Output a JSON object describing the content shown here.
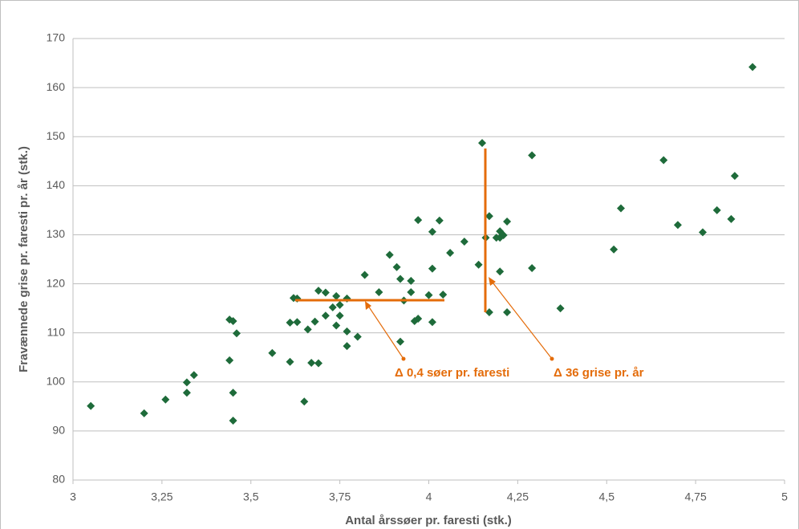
{
  "chart_data": {
    "type": "scatter",
    "x_label": "Antal årssøer pr. faresti (stk.)",
    "y_label": "Fravænnede grise pr. faresti pr. år (stk.)",
    "xlim": [
      3,
      5
    ],
    "xticks": [
      3,
      {
        "value": 3.25,
        "label": "3,25"
      },
      {
        "value": 3.5,
        "label": "3,5"
      },
      {
        "value": 3.75,
        "label": "3,75"
      },
      4,
      {
        "value": 4.25,
        "label": "4,25"
      },
      {
        "value": 4.5,
        "label": "4,5"
      },
      {
        "value": 4.75,
        "label": "4,75"
      },
      5
    ],
    "ylim": [
      80,
      170
    ],
    "yticks": [
      80,
      90,
      100,
      110,
      120,
      130,
      140,
      150,
      160,
      170
    ],
    "grid": true,
    "annotations": [
      "Δ 0,4 søer pr. faresti",
      "Δ 36 grise pr. år"
    ],
    "series": [
      {
        "color": "#1e6b3a",
        "x": [
          3.05,
          3.2,
          3.26,
          3.32,
          3.32,
          3.34,
          3.44,
          3.45,
          3.46,
          3.44,
          3.45,
          3.45,
          3.56,
          3.61,
          3.61,
          3.63,
          3.62,
          3.63,
          3.65,
          3.66,
          3.67,
          3.68,
          3.69,
          3.69,
          3.71,
          3.71,
          3.73,
          3.74,
          3.74,
          3.75,
          3.75,
          3.77,
          3.77,
          3.77,
          3.8,
          3.82,
          3.86,
          3.89,
          3.91,
          3.92,
          3.92,
          3.93,
          3.95,
          3.95,
          3.96,
          3.97,
          3.97,
          4.0,
          4.01,
          4.01,
          4.01,
          4.03,
          4.04,
          4.06,
          4.1,
          4.14,
          4.15,
          4.16,
          4.17,
          4.17,
          4.19,
          4.2,
          4.2,
          4.2,
          4.21,
          4.22,
          4.22,
          4.29,
          4.29,
          4.37,
          4.52,
          4.54,
          4.66,
          4.7,
          4.77,
          4.81,
          4.85,
          4.86,
          4.91
        ],
        "values": [
          95.1,
          93.6,
          96.4,
          99.9,
          97.8,
          101.4,
          112.7,
          112.4,
          109.9,
          104.4,
          97.8,
          92.1,
          105.9,
          104.1,
          112.1,
          112.2,
          117.1,
          117.0,
          96.0,
          110.7,
          103.9,
          112.3,
          103.8,
          118.6,
          113.5,
          118.2,
          115.2,
          117.5,
          111.5,
          115.7,
          113.5,
          117.0,
          110.3,
          107.3,
          109.2,
          121.8,
          118.3,
          125.9,
          123.4,
          121.0,
          108.2,
          116.6,
          120.6,
          118.3,
          112.4,
          112.9,
          133.0,
          117.7,
          123.1,
          130.6,
          112.2,
          132.9,
          117.8,
          126.3,
          128.6,
          123.9,
          148.7,
          129.4,
          114.2,
          133.8,
          129.4,
          130.7,
          129.4,
          122.5,
          129.9,
          132.7,
          114.2,
          146.2,
          123.2,
          115.0,
          127.0,
          135.4,
          145.2,
          132.0,
          130.5,
          135.0,
          133.2,
          142.0,
          164.2
        ]
      }
    ]
  }
}
